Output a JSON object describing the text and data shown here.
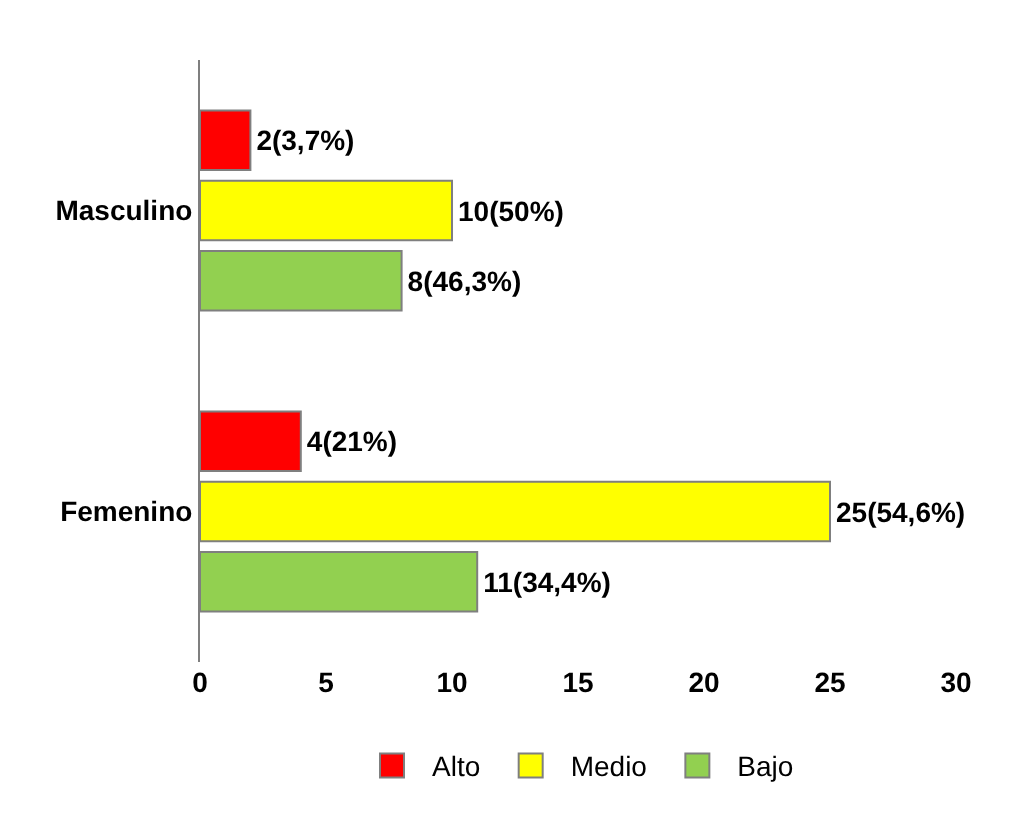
{
  "chart_data": {
    "type": "bar",
    "orientation": "horizontal",
    "categories": [
      "Masculino",
      "Femenino"
    ],
    "series": [
      {
        "name": "Alto",
        "color": "#ff0000",
        "values": [
          2,
          4
        ],
        "value_labels": [
          "2(3,7%)",
          "4(21%)"
        ]
      },
      {
        "name": "Medio",
        "color": "#ffff00",
        "values": [
          10,
          25
        ],
        "value_labels": [
          "10(50%)",
          "25(54,6%)"
        ]
      },
      {
        "name": "Bajo",
        "color": "#92d050",
        "values": [
          8,
          11
        ],
        "value_labels": [
          "8(46,3%)",
          "11(34,4%)"
        ]
      }
    ],
    "xlim": [
      0,
      30
    ],
    "xticks": [
      0,
      5,
      10,
      15,
      20,
      25,
      30
    ],
    "legend": "bottom"
  }
}
